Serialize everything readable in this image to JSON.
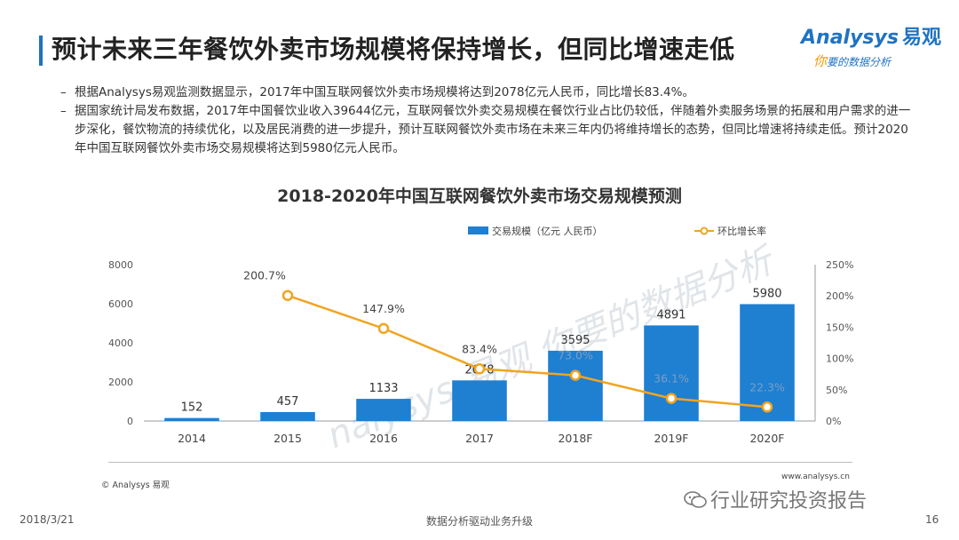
{
  "page_title": "预计未来三年餐饮外卖市场规模将保持增长，但同比增速走低",
  "logo": {
    "brand": "nalysys",
    "brand_initial": "A",
    "brand_cn": "易观",
    "slogan_first": "你",
    "slogan_rest": "要的数据分析"
  },
  "bullets": [
    "根据Analysys易观监测数据显示，2017年中国互联网餐饮外卖市场规模将达到2078亿元人民币，同比增长83.4%。",
    "据国家统计局发布数据，2017年中国餐饮业收入39644亿元，互联网餐饮外卖交易规模在餐饮行业占比仍较低，伴随着外卖服务场景的拓展和用户需求的进一步深化，餐饮物流的持续优化，以及居民消费的进一步提升，预计互联网餐饮外卖市场在未来三年内仍将维持增长的态势，但同比增速将持续走低。预计2020年中国互联网餐饮外卖市场交易规模将达到5980亿元人民币。"
  ],
  "chart_data": {
    "type": "bar",
    "title": "2018-2020年中国互联网餐饮外卖市场交易规模预测",
    "categories": [
      "2014",
      "2015",
      "2016",
      "2017",
      "2018F",
      "2019F",
      "2020F"
    ],
    "series": [
      {
        "name": "交易规模（亿元 人民币）",
        "type": "bar",
        "axis": "left",
        "values": [
          152,
          457,
          1133,
          2078,
          3595,
          4891,
          5980
        ],
        "color": "#1f7fd1"
      },
      {
        "name": "环比增长率",
        "type": "line",
        "axis": "right",
        "values": [
          null,
          200.7,
          147.9,
          83.4,
          73.0,
          36.1,
          22.3
        ],
        "labels": [
          "",
          "200.7%",
          "147.9%",
          "83.4%",
          "73.0%",
          "36.1%",
          "22.3%"
        ],
        "color": "#f0a421"
      }
    ],
    "y_left": {
      "min": 0,
      "max": 8000,
      "ticks": [
        "0",
        "2000",
        "4000",
        "6000",
        "8000"
      ]
    },
    "y_right": {
      "min": 0,
      "max": 250,
      "ticks": [
        "0%",
        "50%",
        "100%",
        "150%",
        "200%",
        "250%"
      ]
    },
    "legend_position": "top",
    "grid": false
  },
  "watermark": "nalysys 易观 你要的数据分析",
  "copyright": "© Analysys 易观",
  "website": "www.analysys.cn",
  "wechat": "行业研究投资报告",
  "footer": {
    "date": "2018/3/21",
    "slogan": "数据分析驱动业务升级",
    "page": "16"
  }
}
